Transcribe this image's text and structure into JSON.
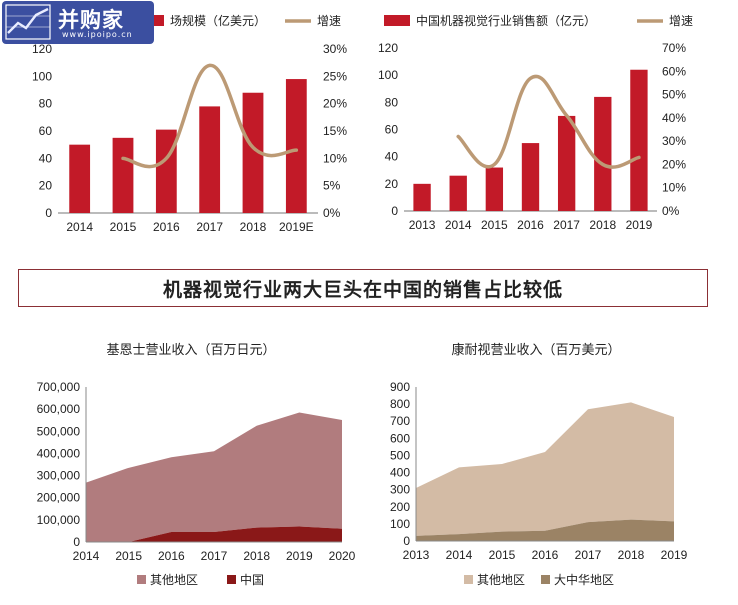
{
  "logo": {
    "name": "并购家",
    "url": "www.ipoipo.cn"
  },
  "banner": {
    "text": "机器视觉行业两大巨头在中国的销售占比较低"
  },
  "colors": {
    "red": "#c21a28",
    "tan": "#bc9a75",
    "rose": "#b17c7e",
    "darkred": "#8a1818",
    "beige": "#d3bba5",
    "brown": "#9b8365"
  },
  "chart_data": [
    {
      "type": "bar",
      "legend": [
        {
          "name": "场规模（亿美元）",
          "kind": "bar"
        },
        {
          "name": "增速",
          "kind": "line"
        }
      ],
      "categories": [
        "2014",
        "2015",
        "2016",
        "2017",
        "2018",
        "2019E"
      ],
      "series": [
        {
          "values": [
            50,
            55,
            61,
            78,
            88,
            98
          ],
          "axis": "left"
        },
        {
          "values": [
            null,
            10,
            10,
            27,
            12,
            11.5
          ],
          "axis": "right",
          "type": "line"
        }
      ],
      "y_left": {
        "range": [
          0,
          120
        ],
        "ticks": [
          "0",
          "20",
          "40",
          "60",
          "80",
          "100",
          "120"
        ]
      },
      "y_right": {
        "range": [
          0,
          30
        ],
        "ticks": [
          "0%",
          "5%",
          "10%",
          "15%",
          "20%",
          "25%",
          "30%"
        ]
      }
    },
    {
      "type": "bar",
      "legend": [
        {
          "name": "中国机器视觉行业销售额（亿元）",
          "kind": "bar"
        },
        {
          "name": "增速",
          "kind": "line"
        }
      ],
      "categories": [
        "2013",
        "2014",
        "2015",
        "2016",
        "2017",
        "2018",
        "2019"
      ],
      "series": [
        {
          "values": [
            20,
            26,
            32,
            50,
            70,
            84,
            104
          ],
          "axis": "left"
        },
        {
          "values": [
            null,
            32,
            20,
            57,
            41,
            20,
            23
          ],
          "axis": "right",
          "type": "line"
        }
      ],
      "y_left": {
        "range": [
          0,
          120
        ],
        "ticks": [
          "0",
          "20",
          "40",
          "60",
          "80",
          "100",
          "120"
        ]
      },
      "y_right": {
        "range": [
          0,
          70
        ],
        "ticks": [
          "0%",
          "10%",
          "20%",
          "30%",
          "40%",
          "50%",
          "60%",
          "70%"
        ]
      }
    },
    {
      "type": "area",
      "title": "基恩士营业收入（百万日元）",
      "categories": [
        "2014",
        "2015",
        "2016",
        "2017",
        "2018",
        "2019",
        "2020"
      ],
      "series": [
        {
          "name": "中国",
          "values": [
            0,
            0,
            45000,
            45000,
            65000,
            70000,
            60000
          ]
        },
        {
          "name": "其他地区",
          "values": [
            268000,
            335000,
            338000,
            365000,
            460000,
            515000,
            491000
          ]
        }
      ],
      "legend_order": [
        "其他地区",
        "中国"
      ],
      "y": {
        "range": [
          0,
          700000
        ],
        "ticks": [
          "0",
          "100,000",
          "200,000",
          "300,000",
          "400,000",
          "500,000",
          "600,000",
          "700,000"
        ]
      }
    },
    {
      "type": "area",
      "title": "康耐视营业收入（百万美元）",
      "categories": [
        "2013",
        "2014",
        "2015",
        "2016",
        "2017",
        "2018",
        "2019"
      ],
      "series": [
        {
          "name": "大中华地区",
          "values": [
            30,
            40,
            55,
            60,
            110,
            125,
            115
          ]
        },
        {
          "name": "其他地区",
          "values": [
            280,
            390,
            395,
            460,
            660,
            685,
            610
          ]
        }
      ],
      "legend_order": [
        "其他地区",
        "大中华地区"
      ],
      "y": {
        "range": [
          0,
          900
        ],
        "ticks": [
          "0",
          "100",
          "200",
          "300",
          "400",
          "500",
          "600",
          "700",
          "800",
          "900"
        ]
      }
    }
  ]
}
